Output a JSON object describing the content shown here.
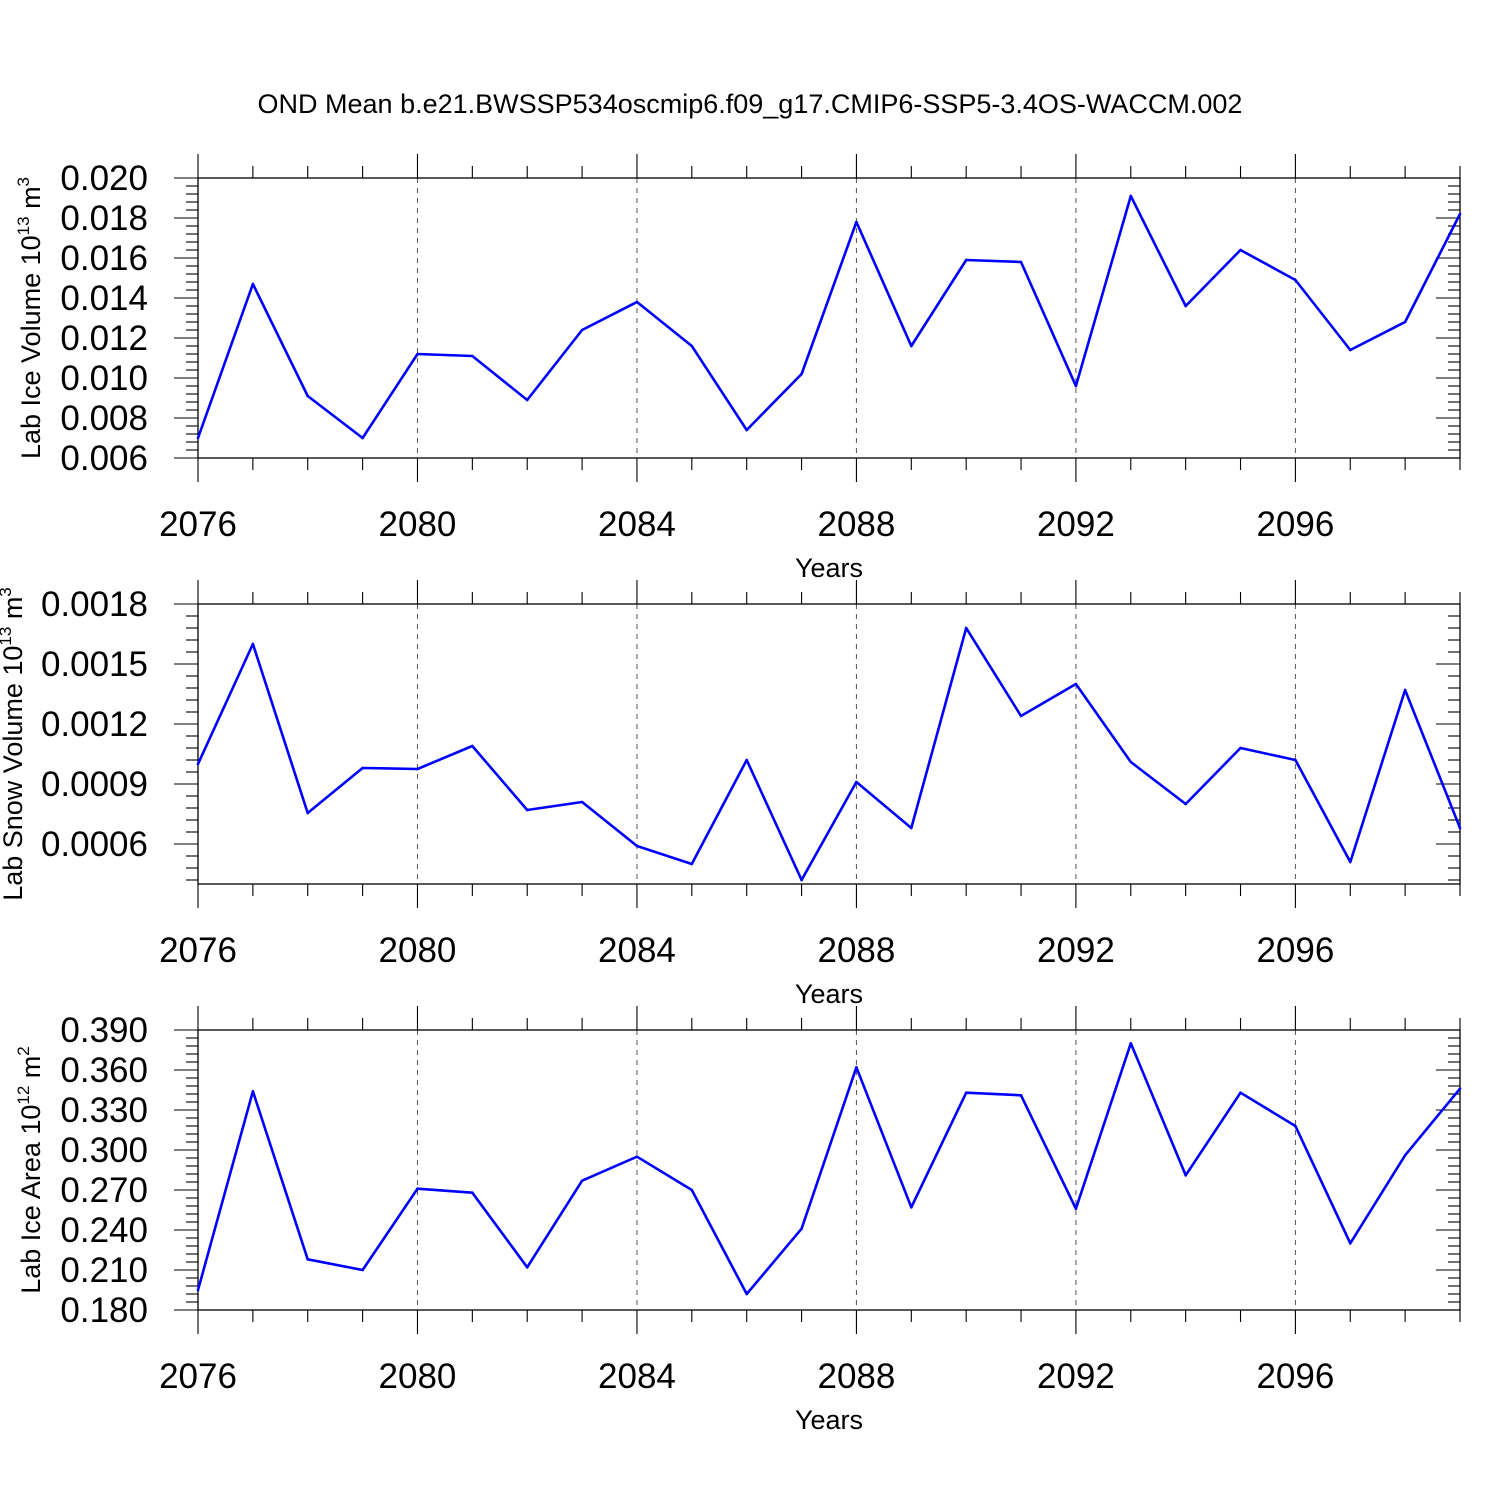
{
  "title": "OND Mean b.e21.BWSSP534oscmip6.f09_g17.CMIP6-SSP5-3.4OS-WACCM.002",
  "line_color": "#0000ff",
  "chart_data": [
    {
      "type": "line",
      "xlabel": "Years",
      "ylabel": {
        "text": "Lab Ice Volume 10",
        "sup": "13",
        "unit": " m",
        "unit_sup": "3"
      },
      "xlim": [
        2076,
        2099
      ],
      "ylim": [
        0.006,
        0.02
      ],
      "xticks": [
        "2076",
        "2080",
        "2084",
        "2088",
        "2092",
        "2096"
      ],
      "yticks": [
        "0.006",
        "0.008",
        "0.010",
        "0.012",
        "0.014",
        "0.016",
        "0.018",
        "0.020"
      ],
      "grid": "vertical dashed at major x ticks",
      "x": [
        2076,
        2077,
        2078,
        2079,
        2080,
        2081,
        2082,
        2083,
        2084,
        2085,
        2086,
        2087,
        2088,
        2089,
        2090,
        2091,
        2092,
        2093,
        2094,
        2095,
        2096,
        2097,
        2098,
        2099
      ],
      "series": [
        {
          "values": [
            0.007,
            0.0147,
            0.0091,
            0.007,
            0.0112,
            0.0111,
            0.0089,
            0.0124,
            0.0138,
            0.0116,
            0.0074,
            0.0102,
            0.0178,
            0.0116,
            0.0159,
            0.0158,
            0.0096,
            0.0191,
            0.0136,
            0.0164,
            0.0149,
            0.0114,
            0.0128,
            0.0182
          ]
        }
      ]
    },
    {
      "type": "line",
      "xlabel": "Years",
      "ylabel": {
        "text": "Lab Snow Volume 10",
        "sup": "13",
        "unit": " m",
        "unit_sup": "3"
      },
      "xlim": [
        2076,
        2099
      ],
      "ylim": [
        0.0004,
        0.0018
      ],
      "xticks": [
        "2076",
        "2080",
        "2084",
        "2088",
        "2092",
        "2096"
      ],
      "yticks": [
        "0.0006",
        "0.0009",
        "0.0012",
        "0.0015",
        "0.0018"
      ],
      "grid": "vertical dashed at major x ticks",
      "x": [
        2076,
        2077,
        2078,
        2079,
        2080,
        2081,
        2082,
        2083,
        2084,
        2085,
        2086,
        2087,
        2088,
        2089,
        2090,
        2091,
        2092,
        2093,
        2094,
        2095,
        2096,
        2097,
        2098,
        2099
      ],
      "series": [
        {
          "values": [
            0.001,
            0.0016,
            0.000755,
            0.00098,
            0.000975,
            0.00109,
            0.00077,
            0.00081,
            0.00059,
            0.0005,
            0.00102,
            0.00042,
            0.00091,
            0.00068,
            0.00168,
            0.00124,
            0.0014,
            0.00101,
            0.0008,
            0.00108,
            0.00102,
            0.00051,
            0.00137,
            0.00068
          ]
        }
      ]
    },
    {
      "type": "line",
      "xlabel": "Years",
      "ylabel": {
        "text": "Lab Ice Area 10",
        "sup": "12",
        "unit": " m",
        "unit_sup": "2"
      },
      "xlim": [
        2076,
        2099
      ],
      "ylim": [
        0.18,
        0.39
      ],
      "xticks": [
        "2076",
        "2080",
        "2084",
        "2088",
        "2092",
        "2096"
      ],
      "yticks": [
        "0.180",
        "0.210",
        "0.240",
        "0.270",
        "0.300",
        "0.330",
        "0.360",
        "0.390"
      ],
      "grid": "vertical dashed at major x ticks",
      "x": [
        2076,
        2077,
        2078,
        2079,
        2080,
        2081,
        2082,
        2083,
        2084,
        2085,
        2086,
        2087,
        2088,
        2089,
        2090,
        2091,
        2092,
        2093,
        2094,
        2095,
        2096,
        2097,
        2098,
        2099
      ],
      "series": [
        {
          "values": [
            0.195,
            0.344,
            0.218,
            0.21,
            0.271,
            0.268,
            0.212,
            0.277,
            0.295,
            0.27,
            0.192,
            0.241,
            0.362,
            0.257,
            0.343,
            0.341,
            0.256,
            0.38,
            0.281,
            0.343,
            0.318,
            0.23,
            0.296,
            0.346
          ]
        }
      ]
    }
  ]
}
